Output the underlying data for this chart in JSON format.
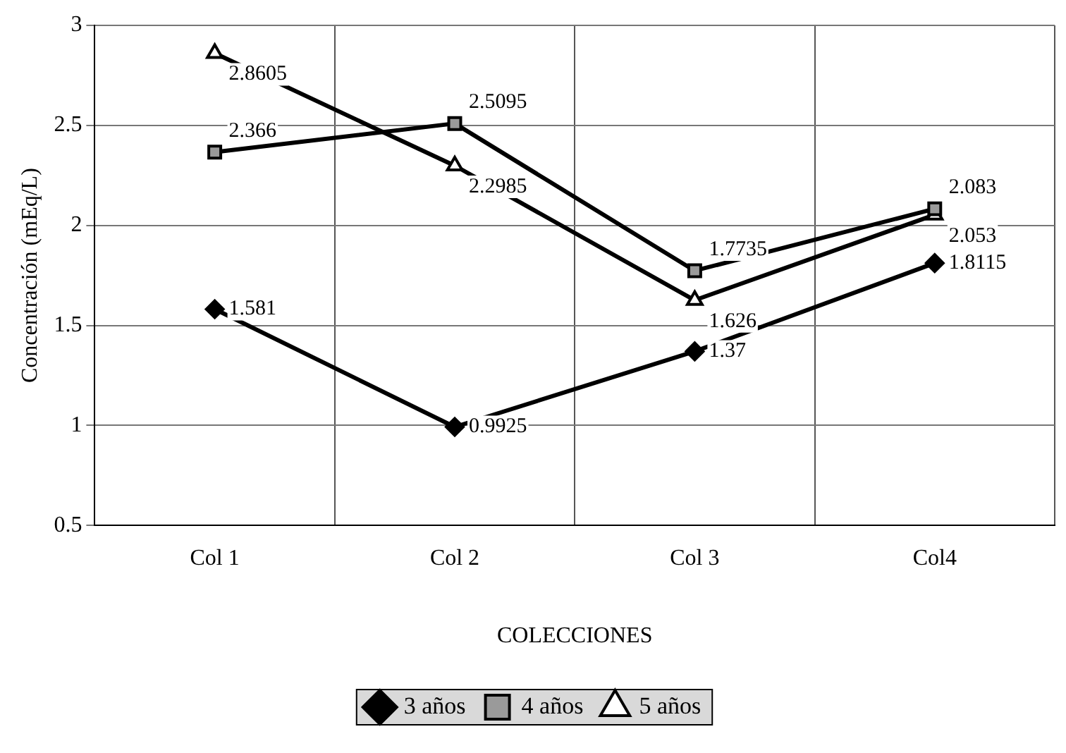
{
  "chart_data": {
    "type": "line",
    "xlabel": "COLECCIONES",
    "ylabel": "Concentración (mEq/L)",
    "categories": [
      "Col 1",
      "Col 2",
      "Col 3",
      "Col4"
    ],
    "series": [
      {
        "name": "3 años",
        "color": "#000000",
        "marker": "diamond",
        "values": [
          1.581,
          0.9925,
          1.37,
          1.8115
        ]
      },
      {
        "name": "4 años",
        "color": "#000000",
        "marker": "square",
        "values": [
          2.366,
          2.5095,
          1.7735,
          2.083
        ]
      },
      {
        "name": "5 años",
        "color": "#000000",
        "marker": "triangle",
        "values": [
          2.8605,
          2.2985,
          1.626,
          2.053
        ]
      }
    ],
    "ylim": [
      0.5,
      3
    ],
    "yticks": [
      0.5,
      1,
      1.5,
      2,
      2.5,
      3
    ],
    "grid": true,
    "legend": "bottom",
    "data_labels": true,
    "line_style": "solid"
  }
}
